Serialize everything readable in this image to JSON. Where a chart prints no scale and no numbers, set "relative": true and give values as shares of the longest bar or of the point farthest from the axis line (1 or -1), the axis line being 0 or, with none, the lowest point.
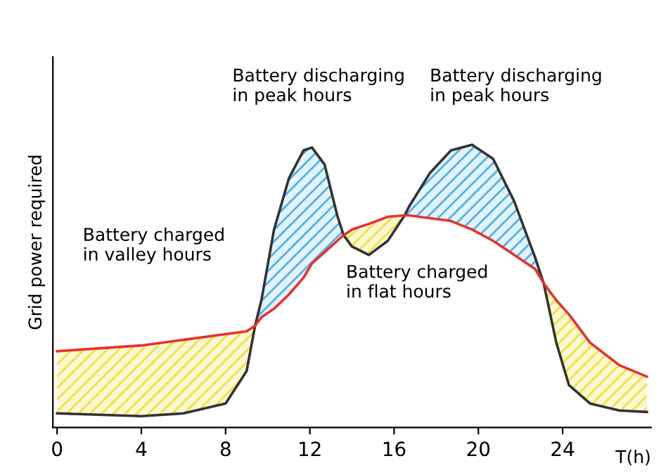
{
  "chart_data": {
    "type": "line",
    "relative": true,
    "xlabel": "T(h)",
    "ylabel": "Grid power required",
    "xlim": [
      -0.2,
      28.2
    ],
    "xticks": [
      0,
      4,
      8,
      12,
      16,
      20,
      24
    ],
    "tick_labels": "x",
    "grid": false,
    "marker": "none",
    "line_style": "solid",
    "series": [
      {
        "color": "#333333",
        "x": [
          0,
          4,
          6,
          8,
          9,
          9.4,
          9.7,
          10.3,
          11,
          11.7,
          12.1,
          12.7,
          13.3,
          13.6,
          14,
          14.8,
          15.7,
          16.5,
          16.7,
          17.7,
          18.7,
          19.7,
          20.7,
          21.7,
          22.7,
          23.1,
          23.7,
          24.3,
          25.3,
          26.7,
          28
        ],
        "values": [
          0.05,
          0.04,
          0.05,
          0.085,
          0.2,
          0.36,
          0.45,
          0.7,
          0.88,
          0.98,
          0.99,
          0.93,
          0.75,
          0.68,
          0.64,
          0.61,
          0.66,
          0.75,
          0.78,
          0.9,
          0.98,
          1.0,
          0.95,
          0.8,
          0.6,
          0.51,
          0.3,
          0.15,
          0.085,
          0.06,
          0.055
        ],
        "lower": [
          null,
          null,
          null,
          null,
          null,
          0.36,
          0.39,
          0.42,
          0.47,
          0.53,
          0.58,
          0.62,
          0.66,
          0.68,
          null,
          null,
          null,
          0.75,
          0.75,
          0.74,
          0.73,
          0.7,
          0.66,
          0.61,
          0.56,
          0.51,
          null,
          null,
          null,
          null,
          null
        ],
        "upper": [
          null,
          null,
          null,
          null,
          null,
          0.36,
          0.45,
          0.7,
          0.88,
          0.98,
          0.99,
          0.93,
          0.75,
          0.68,
          null,
          null,
          null,
          0.75,
          0.78,
          0.9,
          0.98,
          1.0,
          0.95,
          0.8,
          0.6,
          0.51,
          null,
          null,
          null,
          null,
          null
        ]
      },
      {
        "color": "#e8312f",
        "x": [
          0,
          4,
          6,
          8,
          9,
          9.4,
          9.7,
          10.3,
          11,
          11.7,
          12.1,
          12.7,
          13.3,
          13.6,
          14,
          14.8,
          15.7,
          16.5,
          16.7,
          17.7,
          18.7,
          19.7,
          20.7,
          21.7,
          22.7,
          23.1,
          23.7,
          24.3,
          25.3,
          26.7,
          28
        ],
        "values": [
          0.27,
          0.29,
          0.31,
          0.33,
          0.34,
          0.36,
          0.39,
          0.42,
          0.47,
          0.53,
          0.58,
          0.62,
          0.66,
          0.68,
          0.7,
          0.72,
          0.745,
          0.75,
          0.75,
          0.74,
          0.73,
          0.7,
          0.66,
          0.61,
          0.56,
          0.51,
          0.45,
          0.4,
          0.3,
          0.22,
          0.18
        ],
        "lower": [
          0.05,
          0.04,
          0.05,
          0.085,
          0.2,
          0.36,
          null,
          null,
          null,
          null,
          null,
          null,
          null,
          0.68,
          0.64,
          0.61,
          0.66,
          0.75,
          null,
          null,
          null,
          null,
          null,
          null,
          null,
          0.51,
          0.3,
          0.15,
          0.085,
          0.06,
          0.055
        ],
        "upper": [
          0.27,
          0.29,
          0.31,
          0.33,
          0.34,
          0.36,
          null,
          null,
          null,
          null,
          null,
          null,
          null,
          0.68,
          0.7,
          0.72,
          0.745,
          0.75,
          null,
          null,
          null,
          null,
          null,
          null,
          null,
          0.51,
          0.45,
          0.4,
          0.3,
          0.22,
          0.18
        ]
      }
    ],
    "annotations": [
      "Battery charged\nin valley hours",
      "Battery discharging\nin peak hours",
      "Battery discharging\nin peak hours",
      "Battery charged\nin flat hours"
    ]
  }
}
